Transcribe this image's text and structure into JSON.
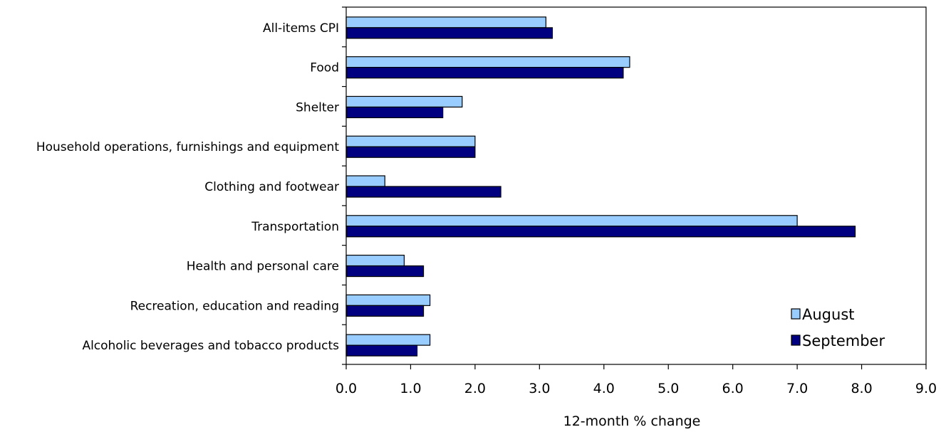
{
  "chart_data": {
    "type": "bar",
    "orientation": "horizontal",
    "categories": [
      "All-items CPI",
      "Food",
      "Shelter",
      "Household operations, furnishings and equipment",
      "Clothing and footwear",
      "Transportation",
      "Health and personal care",
      "Recreation, education and reading",
      "Alcoholic beverages and tobacco products"
    ],
    "series": [
      {
        "name": "August",
        "color": "#99ccff",
        "values": [
          3.1,
          4.4,
          1.8,
          2.0,
          0.6,
          7.0,
          0.9,
          1.3,
          1.3
        ]
      },
      {
        "name": "September",
        "color": "#000080",
        "values": [
          3.2,
          4.3,
          1.5,
          2.0,
          2.4,
          7.9,
          1.2,
          1.2,
          1.1
        ]
      }
    ],
    "xlabel": "12-month % change",
    "ylabel": "",
    "xlim": [
      0,
      9
    ],
    "xticks": [
      "0.0",
      "1.0",
      "2.0",
      "3.0",
      "4.0",
      "5.0",
      "6.0",
      "7.0",
      "8.0",
      "9.0"
    ],
    "grid": false,
    "legend_position": "bottom-right"
  }
}
